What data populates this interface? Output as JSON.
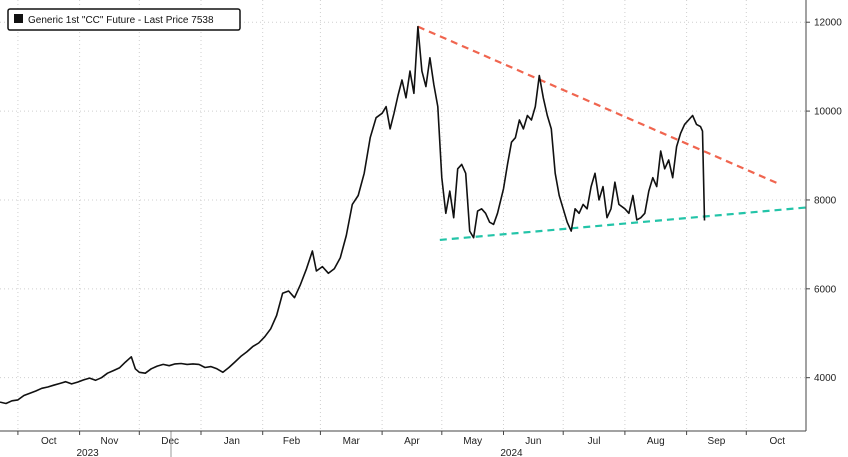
{
  "legend": {
    "label": "Generic 1st \"CC\" Future - Last Price 7538"
  },
  "chart_data": {
    "type": "line",
    "title": "",
    "xlabel": "",
    "ylabel": "",
    "x_range": [
      "2023-09-22",
      "2024-10-31"
    ],
    "ylim": [
      2800,
      12500
    ],
    "y_ticks": [
      4000,
      6000,
      8000,
      10000,
      12000
    ],
    "y_axis_position": "right",
    "x_ticks": [
      {
        "date": "2023-10-01",
        "label": "Oct"
      },
      {
        "date": "2023-11-01",
        "label": "Nov"
      },
      {
        "date": "2023-12-01",
        "label": "Dec"
      },
      {
        "date": "2024-01-01",
        "label": "Jan"
      },
      {
        "date": "2024-02-01",
        "label": "Feb"
      },
      {
        "date": "2024-03-01",
        "label": "Mar"
      },
      {
        "date": "2024-04-01",
        "label": "Apr"
      },
      {
        "date": "2024-05-01",
        "label": "May"
      },
      {
        "date": "2024-06-01",
        "label": "Jun"
      },
      {
        "date": "2024-07-01",
        "label": "Jul"
      },
      {
        "date": "2024-08-01",
        "label": "Aug"
      },
      {
        "date": "2024-09-01",
        "label": "Sep"
      },
      {
        "date": "2024-10-01",
        "label": "Oct"
      }
    ],
    "year_labels": [
      {
        "date": "2023-11-01",
        "label": "2023"
      },
      {
        "date": "2024-06-01",
        "label": "2024"
      }
    ],
    "grid": true,
    "legend_position": "top-left",
    "series": [
      {
        "name": "Generic 1st \"CC\" Future - Last Price",
        "color": "#111111",
        "last_value": 7538,
        "points": [
          [
            "2023-09-22",
            3450
          ],
          [
            "2023-09-25",
            3420
          ],
          [
            "2023-09-28",
            3480
          ],
          [
            "2023-10-01",
            3500
          ],
          [
            "2023-10-04",
            3600
          ],
          [
            "2023-10-07",
            3650
          ],
          [
            "2023-10-10",
            3700
          ],
          [
            "2023-10-13",
            3760
          ],
          [
            "2023-10-16",
            3790
          ],
          [
            "2023-10-19",
            3830
          ],
          [
            "2023-10-22",
            3870
          ],
          [
            "2023-10-25",
            3910
          ],
          [
            "2023-10-28",
            3860
          ],
          [
            "2023-10-31",
            3900
          ],
          [
            "2023-11-03",
            3950
          ],
          [
            "2023-11-06",
            3990
          ],
          [
            "2023-11-09",
            3940
          ],
          [
            "2023-11-12",
            4000
          ],
          [
            "2023-11-15",
            4100
          ],
          [
            "2023-11-18",
            4160
          ],
          [
            "2023-11-21",
            4220
          ],
          [
            "2023-11-24",
            4350
          ],
          [
            "2023-11-27",
            4470
          ],
          [
            "2023-11-29",
            4200
          ],
          [
            "2023-12-01",
            4120
          ],
          [
            "2023-12-04",
            4100
          ],
          [
            "2023-12-07",
            4200
          ],
          [
            "2023-12-10",
            4260
          ],
          [
            "2023-12-13",
            4300
          ],
          [
            "2023-12-16",
            4270
          ],
          [
            "2023-12-19",
            4310
          ],
          [
            "2023-12-22",
            4320
          ],
          [
            "2023-12-25",
            4300
          ],
          [
            "2023-12-28",
            4310
          ],
          [
            "2023-12-31",
            4300
          ],
          [
            "2024-01-03",
            4230
          ],
          [
            "2024-01-06",
            4250
          ],
          [
            "2024-01-09",
            4200
          ],
          [
            "2024-01-12",
            4120
          ],
          [
            "2024-01-15",
            4230
          ],
          [
            "2024-01-18",
            4350
          ],
          [
            "2024-01-21",
            4480
          ],
          [
            "2024-01-24",
            4580
          ],
          [
            "2024-01-27",
            4700
          ],
          [
            "2024-01-30",
            4780
          ],
          [
            "2024-02-02",
            4920
          ],
          [
            "2024-02-05",
            5100
          ],
          [
            "2024-02-08",
            5400
          ],
          [
            "2024-02-11",
            5900
          ],
          [
            "2024-02-14",
            5950
          ],
          [
            "2024-02-17",
            5800
          ],
          [
            "2024-02-20",
            6100
          ],
          [
            "2024-02-23",
            6450
          ],
          [
            "2024-02-26",
            6850
          ],
          [
            "2024-02-28",
            6400
          ],
          [
            "2024-03-02",
            6500
          ],
          [
            "2024-03-05",
            6350
          ],
          [
            "2024-03-08",
            6450
          ],
          [
            "2024-03-11",
            6700
          ],
          [
            "2024-03-14",
            7200
          ],
          [
            "2024-03-17",
            7900
          ],
          [
            "2024-03-20",
            8100
          ],
          [
            "2024-03-23",
            8600
          ],
          [
            "2024-03-26",
            9400
          ],
          [
            "2024-03-29",
            9850
          ],
          [
            "2024-04-01",
            9950
          ],
          [
            "2024-04-03",
            10100
          ],
          [
            "2024-04-05",
            9600
          ],
          [
            "2024-04-07",
            9950
          ],
          [
            "2024-04-09",
            10350
          ],
          [
            "2024-04-11",
            10700
          ],
          [
            "2024-04-13",
            10300
          ],
          [
            "2024-04-15",
            10900
          ],
          [
            "2024-04-17",
            10400
          ],
          [
            "2024-04-19",
            11900
          ],
          [
            "2024-04-21",
            10900
          ],
          [
            "2024-04-23",
            10550
          ],
          [
            "2024-04-25",
            11200
          ],
          [
            "2024-04-27",
            10600
          ],
          [
            "2024-04-29",
            10100
          ],
          [
            "2024-05-01",
            8500
          ],
          [
            "2024-05-03",
            7700
          ],
          [
            "2024-05-05",
            8200
          ],
          [
            "2024-05-07",
            7600
          ],
          [
            "2024-05-09",
            8700
          ],
          [
            "2024-05-11",
            8800
          ],
          [
            "2024-05-13",
            8600
          ],
          [
            "2024-05-15",
            7300
          ],
          [
            "2024-05-17",
            7150
          ],
          [
            "2024-05-19",
            7750
          ],
          [
            "2024-05-21",
            7800
          ],
          [
            "2024-05-23",
            7700
          ],
          [
            "2024-05-25",
            7500
          ],
          [
            "2024-05-27",
            7450
          ],
          [
            "2024-05-29",
            7700
          ],
          [
            "2024-06-01",
            8250
          ],
          [
            "2024-06-03",
            8800
          ],
          [
            "2024-06-05",
            9300
          ],
          [
            "2024-06-07",
            9400
          ],
          [
            "2024-06-09",
            9800
          ],
          [
            "2024-06-11",
            9600
          ],
          [
            "2024-06-13",
            9900
          ],
          [
            "2024-06-15",
            9800
          ],
          [
            "2024-06-17",
            10100
          ],
          [
            "2024-06-19",
            10800
          ],
          [
            "2024-06-21",
            10300
          ],
          [
            "2024-06-23",
            9900
          ],
          [
            "2024-06-25",
            9600
          ],
          [
            "2024-06-27",
            8600
          ],
          [
            "2024-06-29",
            8100
          ],
          [
            "2024-07-01",
            7800
          ],
          [
            "2024-07-03",
            7500
          ],
          [
            "2024-07-05",
            7300
          ],
          [
            "2024-07-07",
            7800
          ],
          [
            "2024-07-09",
            7700
          ],
          [
            "2024-07-11",
            7900
          ],
          [
            "2024-07-13",
            7800
          ],
          [
            "2024-07-15",
            8300
          ],
          [
            "2024-07-17",
            8600
          ],
          [
            "2024-07-19",
            8000
          ],
          [
            "2024-07-21",
            8300
          ],
          [
            "2024-07-23",
            7600
          ],
          [
            "2024-07-25",
            7800
          ],
          [
            "2024-07-27",
            8400
          ],
          [
            "2024-07-29",
            7900
          ],
          [
            "2024-08-01",
            7800
          ],
          [
            "2024-08-03",
            7700
          ],
          [
            "2024-08-05",
            8100
          ],
          [
            "2024-08-07",
            7550
          ],
          [
            "2024-08-09",
            7600
          ],
          [
            "2024-08-11",
            7700
          ],
          [
            "2024-08-13",
            8200
          ],
          [
            "2024-08-15",
            8500
          ],
          [
            "2024-08-17",
            8300
          ],
          [
            "2024-08-19",
            9100
          ],
          [
            "2024-08-21",
            8700
          ],
          [
            "2024-08-23",
            8900
          ],
          [
            "2024-08-25",
            8500
          ],
          [
            "2024-08-27",
            9200
          ],
          [
            "2024-08-29",
            9500
          ],
          [
            "2024-08-31",
            9700
          ],
          [
            "2024-09-02",
            9800
          ],
          [
            "2024-09-04",
            9900
          ],
          [
            "2024-09-06",
            9700
          ],
          [
            "2024-09-08",
            9650
          ],
          [
            "2024-09-09",
            9550
          ],
          [
            "2024-09-10",
            7538
          ]
        ]
      }
    ],
    "trendlines": [
      {
        "style": "dashed",
        "color": "#f0654f",
        "from": [
          "2024-04-19",
          11900
        ],
        "to": [
          "2024-10-18",
          8350
        ]
      },
      {
        "style": "dashed",
        "color": "#23c4a8",
        "from": [
          "2024-04-30",
          7100
        ],
        "to": [
          "2024-10-31",
          7830
        ]
      }
    ]
  }
}
